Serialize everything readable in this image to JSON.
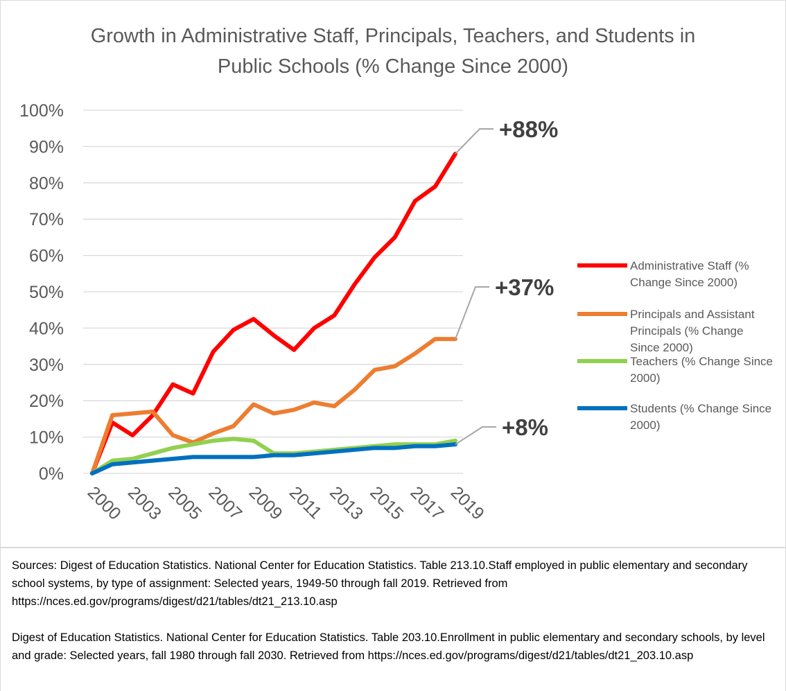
{
  "chart_data": {
    "type": "line",
    "title": "Growth in Administrative Staff, Principals, Teachers, and Students in Public Schools (% Change Since 2000)",
    "categories": [
      "2000",
      null,
      "2003",
      null,
      "2005",
      null,
      "2007",
      null,
      "2009",
      null,
      "2011",
      null,
      "2013",
      null,
      "2015",
      null,
      "2017",
      null,
      "2019"
    ],
    "series": [
      {
        "name": "Administrative Staff (% Change Since 2000)",
        "color": "#ff0000",
        "values": [
          0,
          14,
          10.5,
          16,
          24.5,
          22,
          33.5,
          39.5,
          42.5,
          38,
          34,
          40,
          43.5,
          52,
          59.5,
          65,
          75,
          79,
          88
        ]
      },
      {
        "name": "Principals and Assistant Principals (% Change Since 2000)",
        "color": "#ed7d31",
        "values": [
          0,
          16,
          16.5,
          17,
          10.5,
          8.5,
          11,
          13,
          19,
          16.5,
          17.5,
          19.5,
          18.5,
          23,
          28.5,
          29.5,
          33,
          37,
          37
        ]
      },
      {
        "name": "Teachers (% Change Since 2000)",
        "color": "#92d050",
        "values": [
          0,
          3.5,
          4,
          5.5,
          7,
          8,
          9,
          9.5,
          9,
          5.5,
          5.5,
          6,
          6.5,
          7,
          7.5,
          8,
          8,
          8,
          9
        ]
      },
      {
        "name": "Students (% Change Since 2000)",
        "color": "#0070c0",
        "values": [
          0,
          2.5,
          3,
          3.5,
          4,
          4.5,
          4.5,
          4.5,
          4.5,
          5,
          5,
          5.5,
          6,
          6.5,
          7,
          7,
          7.5,
          7.5,
          8
        ]
      }
    ],
    "ylim": [
      0,
      100
    ],
    "yticks": [
      {
        "value": 0,
        "label": "0%"
      },
      {
        "value": 10,
        "label": "10%"
      },
      {
        "value": 20,
        "label": "20%"
      },
      {
        "value": 30,
        "label": "30%"
      },
      {
        "value": 40,
        "label": "40%"
      },
      {
        "value": 50,
        "label": "50%"
      },
      {
        "value": 60,
        "label": "60%"
      },
      {
        "value": 70,
        "label": "70%"
      },
      {
        "value": 80,
        "label": "80%"
      },
      {
        "value": 90,
        "label": "90%"
      },
      {
        "value": 100,
        "label": "100%"
      }
    ],
    "grid": true,
    "legend": "right",
    "annotations": [
      "+88%",
      "+37%",
      "+8%"
    ],
    "sources": [
      "Sources: Digest of Education Statistics. National Center for Education Statistics. Table 213.10.Staff employed in public elementary and secondary school systems, by type of assignment: Selected years, 1949-50 through fall 2019. Retrieved from https://nces.ed.gov/programs/digest/d21/tables/dt21_213.10.asp",
      "Digest of Education Statistics. National Center for Education Statistics. Table 203.10.Enrollment in public elementary and secondary schools, by level and grade: Selected years, fall 1980 through fall 2030. Retrieved from https://nces.ed.gov/programs/digest/d21/tables/dt21_203.10.asp"
    ]
  }
}
